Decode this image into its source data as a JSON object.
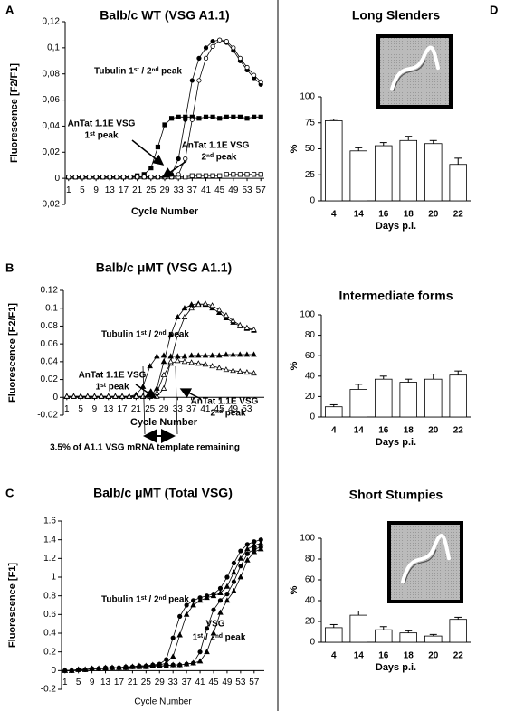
{
  "chart_data": [
    {
      "type": "line",
      "panel_label": "A",
      "title": "Balb/c WT (VSG A1.1)",
      "xlabel": "Cycle Number",
      "ylabel": "Fluorescence [F2/F1]",
      "annotations": [
        [
          "Tubulin 1ˢᵗ / 2ⁿᵈ peak"
        ],
        [
          "AnTat 1.1E VSG",
          "1ˢᵗ peak"
        ],
        [
          "AnTat 1.1E VSG",
          "2ⁿᵈ peak"
        ]
      ],
      "xlim": [
        0,
        58
      ],
      "xticks": [
        1,
        5,
        9,
        13,
        17,
        21,
        25,
        29,
        33,
        37,
        41,
        45,
        49,
        53,
        57
      ],
      "ylim": [
        -0.02,
        0.12
      ],
      "yticks": [
        {
          "value": -0.02,
          "label": "-0,02"
        },
        0,
        {
          "value": 0.02,
          "label": "0,02"
        },
        {
          "value": 0.04,
          "label": "0,04"
        },
        {
          "value": 0.06,
          "label": "0,06"
        },
        {
          "value": 0.08,
          "label": "0,08"
        },
        {
          "value": 0.1,
          "label": "0,1"
        },
        {
          "value": 0.12,
          "label": "0,12"
        }
      ],
      "x": [
        1,
        3,
        5,
        7,
        9,
        11,
        13,
        15,
        17,
        19,
        21,
        23,
        25,
        27,
        29,
        31,
        33,
        35,
        37,
        39,
        41,
        43,
        45,
        47,
        49,
        51,
        53,
        55,
        57
      ],
      "series": [
        {
          "color": "#000000",
          "marker": "square",
          "filled": true,
          "values": [
            0.001,
            0.001,
            0.001,
            0.001,
            0.001,
            0.001,
            0.001,
            0.001,
            0.001,
            0.001,
            0.002,
            0.003,
            0.008,
            0.024,
            0.041,
            0.046,
            0.047,
            0.047,
            0.047,
            0.046,
            0.047,
            0.047,
            0.046,
            0.047,
            0.047,
            0.047,
            0.046,
            0.047,
            0.047
          ]
        },
        {
          "color": "#000000",
          "marker": "square",
          "filled": false,
          "values": [
            0.001,
            0.001,
            0.001,
            0.001,
            0.001,
            0.001,
            0.001,
            0.001,
            0.001,
            0.001,
            0.001,
            0.001,
            0.001,
            0.001,
            0.001,
            0.001,
            0.001,
            0.001,
            0.002,
            0.002,
            0.002,
            0.002,
            0.002,
            0.003,
            0.003,
            0.003,
            0.003,
            0.003,
            0.003
          ]
        },
        {
          "color": "#000000",
          "marker": "circle",
          "filled": true,
          "values": [
            0.001,
            0.001,
            0.001,
            0.001,
            0.001,
            0.001,
            0.001,
            0.001,
            0.001,
            0.001,
            0.001,
            0.001,
            0.001,
            0.001,
            0.001,
            0.003,
            0.015,
            0.045,
            0.075,
            0.092,
            0.1,
            0.105,
            0.106,
            0.104,
            0.098,
            0.09,
            0.083,
            0.077,
            0.072
          ]
        },
        {
          "color": "#000000",
          "marker": "circle",
          "filled": false,
          "values": [
            0.001,
            0.001,
            0.001,
            0.001,
            0.001,
            0.001,
            0.001,
            0.001,
            0.001,
            0.001,
            0.001,
            0.001,
            0.001,
            0.001,
            0.001,
            0.001,
            0.003,
            0.015,
            0.045,
            0.075,
            0.092,
            0.101,
            0.106,
            0.105,
            0.1,
            0.092,
            0.085,
            0.079,
            0.074
          ]
        }
      ]
    },
    {
      "type": "line",
      "panel_label": "B",
      "title": "Balb/c μMT (VSG A1.1)",
      "xlabel": "Cycle Number",
      "ylabel": "Fluorescence [F2/F1]",
      "annotations": [
        [
          "Tubulin 1ˢᵗ / 2ⁿᵈ peak"
        ],
        [
          "AnTat 1.1E VSG",
          "1ˢᵗ peak"
        ],
        [
          "AnTat 1.1E VSG",
          "2ⁿᵈ peak"
        ],
        [
          "3.5% of A1.1 VSG mRNA template remaining"
        ]
      ],
      "xlim": [
        0,
        58
      ],
      "xticks": [
        1,
        5,
        9,
        13,
        17,
        21,
        25,
        29,
        33,
        37,
        41,
        45,
        49,
        53
      ],
      "ylim": [
        -0.02,
        0.12
      ],
      "yticks": [
        -0.02,
        0,
        0.02,
        0.04,
        0.06,
        0.08,
        0.1,
        0.12
      ],
      "x": [
        1,
        3,
        5,
        7,
        9,
        11,
        13,
        15,
        17,
        19,
        21,
        23,
        25,
        27,
        29,
        31,
        33,
        35,
        37,
        39,
        41,
        43,
        45,
        47,
        49,
        51,
        53,
        55
      ],
      "series": [
        {
          "color": "#000000",
          "marker": "triangle",
          "filled": true,
          "values": [
            0.001,
            0.001,
            0.001,
            0.001,
            0.001,
            0.001,
            0.001,
            0.001,
            0.001,
            0.001,
            0.003,
            0.012,
            0.035,
            0.046,
            0.047,
            0.046,
            0.046,
            0.046,
            0.047,
            0.047,
            0.047,
            0.047,
            0.047,
            0.048,
            0.048,
            0.048,
            0.048,
            0.048
          ]
        },
        {
          "color": "#000000",
          "marker": "triangle",
          "filled": false,
          "values": [
            0.001,
            0.001,
            0.001,
            0.001,
            0.001,
            0.001,
            0.001,
            0.001,
            0.001,
            0.001,
            0.001,
            0.001,
            0.001,
            0.005,
            0.025,
            0.038,
            0.041,
            0.04,
            0.039,
            0.038,
            0.037,
            0.035,
            0.033,
            0.031,
            0.03,
            0.029,
            0.028,
            0.027
          ]
        },
        {
          "color": "#000000",
          "marker": "triangle",
          "filled": true,
          "values": [
            0.001,
            0.001,
            0.001,
            0.001,
            0.001,
            0.001,
            0.001,
            0.001,
            0.001,
            0.001,
            0.001,
            0.001,
            0.001,
            0.01,
            0.04,
            0.07,
            0.09,
            0.1,
            0.104,
            0.105,
            0.104,
            0.1,
            0.095,
            0.089,
            0.084,
            0.08,
            0.077,
            0.075
          ]
        },
        {
          "color": "#000000",
          "marker": "triangle",
          "filled": false,
          "values": [
            0.001,
            0.001,
            0.001,
            0.001,
            0.001,
            0.001,
            0.001,
            0.001,
            0.001,
            0.001,
            0.001,
            0.001,
            0.001,
            0.001,
            0.01,
            0.04,
            0.07,
            0.09,
            0.1,
            0.104,
            0.105,
            0.103,
            0.098,
            0.092,
            0.086,
            0.081,
            0.078,
            0.076
          ]
        }
      ]
    },
    {
      "type": "line",
      "panel_label": "C",
      "title": "Balb/c μMT (Total VSG)",
      "xlabel": "Cycle Number",
      "ylabel": "Fluorescence [F1]",
      "annotations": [
        [
          "Tubulin 1ˢᵗ / 2ⁿᵈ peak"
        ],
        [
          "VSG",
          "1ˢᵗ / 2ⁿᵈ peak"
        ]
      ],
      "xlim": [
        0,
        60
      ],
      "xticks": [
        1,
        5,
        9,
        13,
        17,
        21,
        25,
        29,
        33,
        37,
        41,
        45,
        49,
        53,
        57
      ],
      "ylim": [
        -0.2,
        1.6
      ],
      "yticks": [
        -0.2,
        0,
        0.2,
        0.4,
        0.6,
        0.8,
        1,
        1.2,
        1.4,
        1.6
      ],
      "x": [
        1,
        3,
        5,
        7,
        9,
        11,
        13,
        15,
        17,
        19,
        21,
        23,
        25,
        27,
        29,
        31,
        33,
        35,
        37,
        39,
        41,
        43,
        45,
        47,
        49,
        51,
        53,
        55,
        57,
        59
      ],
      "series": [
        {
          "color": "#000000",
          "marker": "circle",
          "filled": true,
          "values": [
            0,
            0,
            0.01,
            0.01,
            0.02,
            0.02,
            0.03,
            0.03,
            0.03,
            0.04,
            0.04,
            0.05,
            0.05,
            0.06,
            0.07,
            0.12,
            0.35,
            0.58,
            0.7,
            0.75,
            0.78,
            0.8,
            0.82,
            0.88,
            1,
            1.15,
            1.28,
            1.35,
            1.38,
            1.4
          ]
        },
        {
          "color": "#000000",
          "marker": "triangle",
          "filled": true,
          "values": [
            0,
            0,
            0.01,
            0.01,
            0.02,
            0.02,
            0.03,
            0.03,
            0.03,
            0.04,
            0.04,
            0.05,
            0.05,
            0.06,
            0.06,
            0.08,
            0.15,
            0.38,
            0.6,
            0.7,
            0.75,
            0.78,
            0.8,
            0.83,
            0.9,
            1.05,
            1.2,
            1.3,
            1.34,
            1.36
          ]
        },
        {
          "color": "#000000",
          "marker": "circle",
          "filled": true,
          "values": [
            0,
            0,
            0.01,
            0.01,
            0.02,
            0.02,
            0.02,
            0.03,
            0.03,
            0.03,
            0.04,
            0.04,
            0.04,
            0.05,
            0.05,
            0.05,
            0.06,
            0.06,
            0.07,
            0.08,
            0.2,
            0.45,
            0.65,
            0.75,
            0.82,
            0.95,
            1.12,
            1.25,
            1.3,
            1.32
          ]
        },
        {
          "color": "#000000",
          "marker": "triangle",
          "filled": true,
          "values": [
            0,
            0,
            0.01,
            0.01,
            0.02,
            0.02,
            0.02,
            0.03,
            0.03,
            0.03,
            0.04,
            0.04,
            0.04,
            0.05,
            0.05,
            0.05,
            0.06,
            0.06,
            0.07,
            0.08,
            0.1,
            0.2,
            0.4,
            0.62,
            0.75,
            0.85,
            1,
            1.18,
            1.27,
            1.3
          ]
        }
      ]
    },
    {
      "type": "bar",
      "panel_label": "D",
      "title": "Long Slenders",
      "xlabel": "Days p.i.",
      "ylabel": "%",
      "categories": [
        "4",
        "14",
        "16",
        "18",
        "20",
        "22"
      ],
      "values": [
        77,
        48,
        53,
        58,
        55,
        35
      ],
      "errors": [
        1.5,
        3,
        3,
        4,
        3,
        6
      ],
      "color": "#ffffff",
      "ylim": [
        0,
        100
      ],
      "yticks": [
        0,
        25,
        50,
        75,
        100
      ]
    },
    {
      "type": "bar",
      "title": "Intermediate forms",
      "xlabel": "Days p.i.",
      "ylabel": "%",
      "categories": [
        "4",
        "14",
        "16",
        "18",
        "20",
        "22"
      ],
      "values": [
        10,
        27,
        37,
        34,
        37,
        41
      ],
      "errors": [
        2,
        5,
        3,
        3,
        5,
        4
      ],
      "color": "#ffffff",
      "ylim": [
        0,
        100
      ],
      "yticks": [
        0,
        20,
        40,
        60,
        80,
        100
      ]
    },
    {
      "type": "bar",
      "title": "Short Stumpies",
      "xlabel": "Days p.i.",
      "ylabel": "%",
      "categories": [
        "4",
        "14",
        "16",
        "18",
        "20",
        "22"
      ],
      "values": [
        14,
        26,
        12,
        9,
        6,
        22
      ],
      "errors": [
        3,
        4,
        3,
        2,
        1.5,
        2
      ],
      "color": "#ffffff",
      "ylim": [
        0,
        100
      ],
      "yticks": [
        0,
        20,
        40,
        60,
        80,
        100
      ]
    }
  ]
}
